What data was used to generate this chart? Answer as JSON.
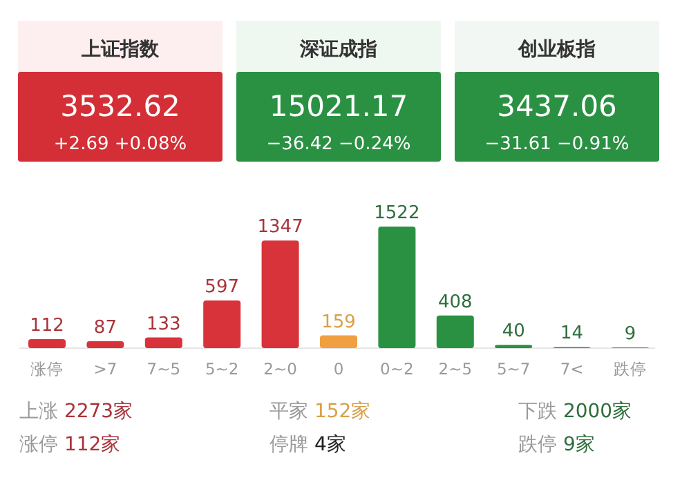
{
  "chart_data": [
    {
      "type": "other",
      "title": "上证指数",
      "annotations": [
        "3532.62",
        "+2.69",
        "+0.08%"
      ]
    },
    {
      "type": "other",
      "title": "深证成指",
      "annotations": [
        "15021.17",
        "−36.42",
        "−0.24%"
      ]
    },
    {
      "type": "other",
      "title": "创业板指",
      "annotations": [
        "3437.06",
        "−31.61",
        "−0.91%"
      ]
    },
    {
      "type": "bar",
      "categories": [
        "涨停",
        ">7",
        "7~5",
        "5~2",
        "2~0",
        "0",
        "0~2",
        "2~5",
        "5~7",
        "7<",
        "跌停"
      ],
      "values": [
        112,
        87,
        133,
        597,
        1347,
        159,
        1522,
        408,
        40,
        14,
        9
      ],
      "colors": [
        "#d8333a",
        "#d8333a",
        "#d8333a",
        "#d8333a",
        "#d8333a",
        "#f0a040",
        "#2a9143",
        "#2a9143",
        "#2a9143",
        "#2a9143",
        "#2a9143"
      ],
      "data_labels": true
    },
    {
      "type": "other",
      "annotations": [
        "上涨 2273家",
        "平家 152家",
        "下跌 2000家",
        "涨停 112家",
        "停牌 4家",
        "跌停 9家"
      ]
    }
  ]
}
